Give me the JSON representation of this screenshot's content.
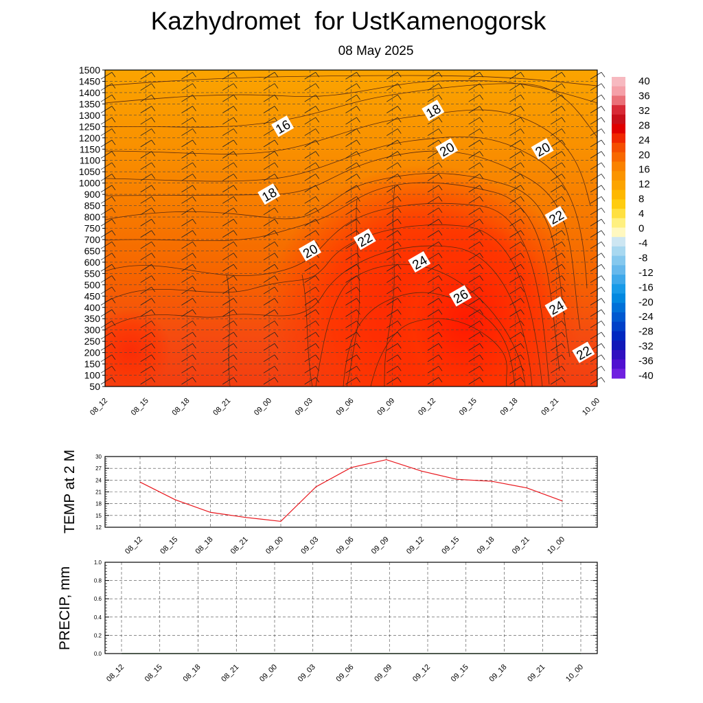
{
  "title": "Kazhydromet  for UstKamenogorsk",
  "subtitle": "08 May 2025",
  "chart_data": [
    {
      "type": "heatmap",
      "name": "temperature-cross-section",
      "x_categories": [
        "08_12",
        "08_15",
        "08_18",
        "08_21",
        "09_00",
        "09_03",
        "09_06",
        "09_09",
        "09_12",
        "09_15",
        "09_18",
        "09_21",
        "10_00"
      ],
      "y_ticks": [
        50,
        100,
        150,
        200,
        250,
        300,
        350,
        400,
        450,
        500,
        550,
        600,
        650,
        700,
        750,
        800,
        850,
        900,
        1000,
        1050,
        1100,
        1150,
        1200,
        1250,
        1300,
        1350,
        1400,
        1450,
        1500
      ],
      "y_tick_labels": [
        "50",
        "100",
        "150",
        "200",
        "250",
        "300",
        "350",
        "400",
        "450",
        "500",
        "550",
        "600",
        "650",
        "700",
        "750",
        "800",
        "850",
        "900",
        "1000",
        "1050",
        "1100",
        "1150",
        "1200",
        "1250",
        "1300",
        "1350",
        "1400",
        "1450",
        "1500"
      ],
      "contour_labels": [
        {
          "text": "16",
          "x": "09_01",
          "y": 1250
        },
        {
          "text": "18",
          "x": "09_00",
          "y": 900
        },
        {
          "text": "18",
          "x": "09_12",
          "y": 1320
        },
        {
          "text": "20",
          "x": "09_03",
          "y": 650
        },
        {
          "text": "20",
          "x": "09_13",
          "y": 1150
        },
        {
          "text": "20",
          "x": "09_20",
          "y": 1150
        },
        {
          "text": "22",
          "x": "09_07",
          "y": 700
        },
        {
          "text": "22",
          "x": "09_21",
          "y": 800
        },
        {
          "text": "22",
          "x": "09_23",
          "y": 200
        },
        {
          "text": "24",
          "x": "09_11",
          "y": 600
        },
        {
          "text": "24",
          "x": "09_21",
          "y": 400
        },
        {
          "text": "26",
          "x": "09_14",
          "y": 450
        }
      ],
      "colorbar": {
        "labels": [
          "40",
          "36",
          "32",
          "28",
          "24",
          "20",
          "16",
          "12",
          "8",
          "4",
          "0",
          "-4",
          "-8",
          "-12",
          "-16",
          "-20",
          "-24",
          "-28",
          "-32",
          "-36",
          "-40"
        ],
        "colors_top_to_bottom": [
          "#f7b9c0",
          "#f5a0a8",
          "#ea7078",
          "#d82a36",
          "#c8101a",
          "#e00000",
          "#f02800",
          "#f54e00",
          "#f86800",
          "#fa8200",
          "#fb9400",
          "#fca400",
          "#feb800",
          "#ffcc10",
          "#ffe040",
          "#fff080",
          "#fff8c0",
          "#cde6f2",
          "#a8d8f0",
          "#85c8ee",
          "#66b8ec",
          "#3fa8ea",
          "#189ae8",
          "#0288e0",
          "#0070d8",
          "#0058d0",
          "#0040c8",
          "#0028c0",
          "#1018b8",
          "#3010c0",
          "#5010d0",
          "#7020e0"
        ]
      }
    },
    {
      "type": "line",
      "name": "temp-at-2m",
      "ylabel": "TEMP at 2 M",
      "ylim": [
        12,
        30
      ],
      "y_ticks": [
        12,
        15,
        18,
        21,
        24,
        27,
        30
      ],
      "categories": [
        "08_12",
        "08_15",
        "08_18",
        "08_21",
        "09_00",
        "09_03",
        "09_06",
        "09_09",
        "09_12",
        "09_15",
        "09_18",
        "09_21",
        "10_00"
      ],
      "values": [
        23.5,
        19.0,
        15.8,
        14.5,
        13.5,
        22.3,
        27.2,
        29.2,
        26.3,
        24.2,
        23.7,
        22.0,
        18.7
      ],
      "line_color": "#e8141a"
    },
    {
      "type": "line",
      "name": "precip",
      "ylabel": "PRECIP, mm",
      "ylim": [
        0.0,
        1.0
      ],
      "y_ticks": [
        0.0,
        0.2,
        0.4,
        0.6,
        0.8,
        1.0
      ],
      "y_tick_labels": [
        "0.0",
        "0.2",
        "0.4",
        "0.6",
        "0.8",
        "1.0"
      ],
      "categories": [
        "08_12",
        "08_15",
        "08_18",
        "08_21",
        "09_00",
        "09_03",
        "09_06",
        "09_09",
        "09_12",
        "09_15",
        "09_18",
        "09_21",
        "10_00"
      ],
      "values": [
        0,
        0,
        0,
        0,
        0,
        0,
        0,
        0,
        0,
        0,
        0,
        0,
        0
      ],
      "line_color": "#1a8a1a"
    }
  ]
}
